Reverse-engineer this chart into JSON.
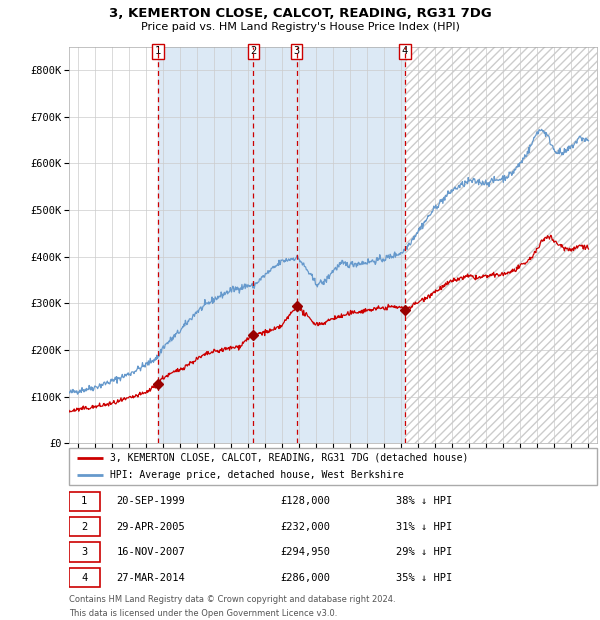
{
  "title": "3, KEMERTON CLOSE, CALCOT, READING, RG31 7DG",
  "subtitle": "Price paid vs. HM Land Registry's House Price Index (HPI)",
  "legend_label_red": "3, KEMERTON CLOSE, CALCOT, READING, RG31 7DG (detached house)",
  "legend_label_blue": "HPI: Average price, detached house, West Berkshire",
  "footer1": "Contains HM Land Registry data © Crown copyright and database right 2024.",
  "footer2": "This data is licensed under the Open Government Licence v3.0.",
  "transactions": [
    {
      "num": 1,
      "date": "20-SEP-1999",
      "price": 128000,
      "pct": "38%",
      "dir": "↓",
      "year": 1999.72
    },
    {
      "num": 2,
      "date": "29-APR-2005",
      "price": 232000,
      "pct": "31%",
      "dir": "↓",
      "year": 2005.32
    },
    {
      "num": 3,
      "date": "16-NOV-2007",
      "price": 294950,
      "pct": "29%",
      "dir": "↓",
      "year": 2007.87
    },
    {
      "num": 4,
      "date": "27-MAR-2014",
      "price": 286000,
      "pct": "35%",
      "dir": "↓",
      "year": 2014.23
    }
  ],
  "marker_prices": [
    128000,
    232000,
    294950,
    286000
  ],
  "hpi_color": "#6699cc",
  "price_color": "#cc0000",
  "vline_color": "#cc0000",
  "bg_color": "#dce9f5",
  "grid_color": "#cccccc",
  "plot_bg": "#ffffff",
  "ylim": [
    0,
    850000
  ],
  "xlim_start": 1994.5,
  "xlim_end": 2025.5,
  "yticks": [
    0,
    100000,
    200000,
    300000,
    400000,
    500000,
    600000,
    700000,
    800000
  ],
  "ytick_labels": [
    "£0",
    "£100K",
    "£200K",
    "£300K",
    "£400K",
    "£500K",
    "£600K",
    "£700K",
    "£800K"
  ],
  "xticks": [
    1995,
    1996,
    1997,
    1998,
    1999,
    2000,
    2001,
    2002,
    2003,
    2004,
    2005,
    2006,
    2007,
    2008,
    2009,
    2010,
    2011,
    2012,
    2013,
    2014,
    2015,
    2016,
    2017,
    2018,
    2019,
    2020,
    2021,
    2022,
    2023,
    2024,
    2025
  ],
  "marker_color": "#990000",
  "hatch_start": 2014.23,
  "hatch_end": 2025.5
}
